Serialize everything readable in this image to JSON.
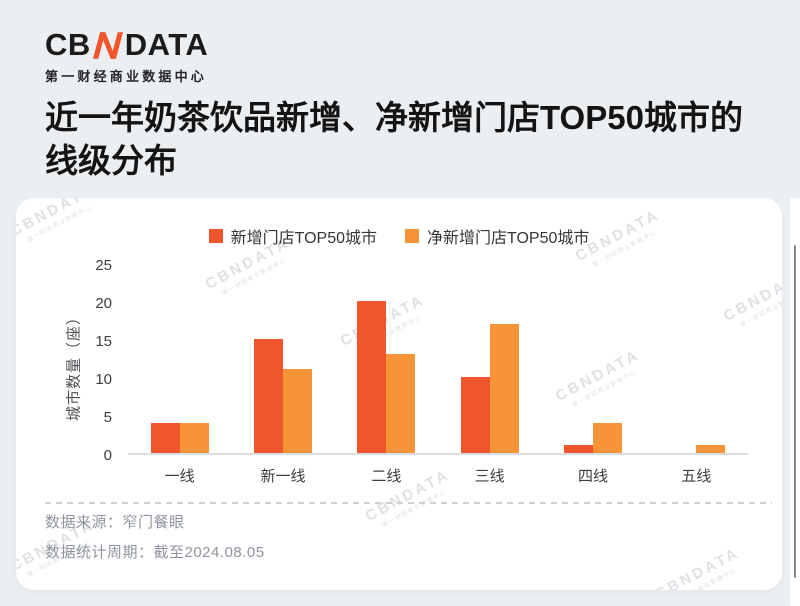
{
  "brand": {
    "logo_prefix": "CB",
    "logo_accent_letter": "N",
    "logo_suffix": "DATA",
    "subtitle": "第一财经商业数据中心",
    "accent_color": "#F0552B"
  },
  "title": "近一年奶茶饮品新增、净新增门店TOP50城市的线级分布",
  "watermark": {
    "line1": "CBNDATA",
    "line2": "第一财经商业数据中心"
  },
  "chart_data": {
    "type": "bar",
    "title": "近一年奶茶饮品新增、净新增门店TOP50城市的线级分布",
    "categories": [
      "一线",
      "新一线",
      "二线",
      "三线",
      "四线",
      "五线"
    ],
    "series": [
      {
        "name": "新增门店TOP50城市",
        "color": "#F0552B",
        "values": [
          4,
          15,
          20,
          10,
          1,
          0
        ]
      },
      {
        "name": "净新增门店TOP50城市",
        "color": "#F79438",
        "values": [
          4,
          11,
          13,
          17,
          4,
          1
        ]
      }
    ],
    "xlabel": "",
    "ylabel": "城市数量（座）",
    "yticks": [
      0,
      5,
      10,
      15,
      20,
      25
    ],
    "ylim": [
      0,
      25
    ],
    "grid": false,
    "legend_position": "top"
  },
  "footer": {
    "source": "数据来源：窄门餐眼",
    "period": "数据统计周期：截至2024.08.05"
  }
}
